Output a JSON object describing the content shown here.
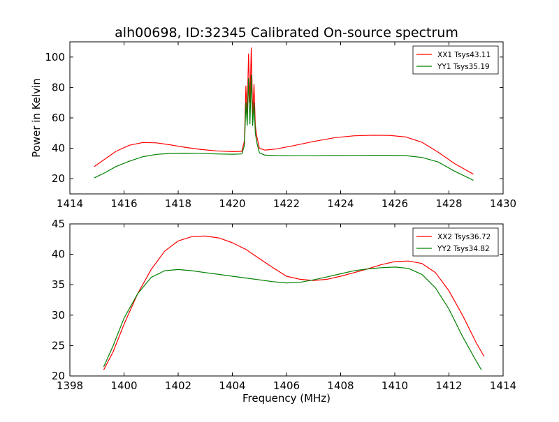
{
  "figure": {
    "title": "alh00698, ID:32345 Calibrated On-source spectrum"
  },
  "colors": {
    "XX": "#ff0000",
    "YY": "#008000"
  },
  "chart_data": [
    {
      "type": "line",
      "title": "alh00698, ID:32345 Calibrated On-source spectrum",
      "xlabel": "",
      "ylabel": "Power in Kelvin",
      "xlim": [
        1414,
        1430
      ],
      "ylim": [
        10,
        110
      ],
      "xticks": [
        1414,
        1416,
        1418,
        1420,
        1422,
        1424,
        1426,
        1428,
        1430
      ],
      "yticks": [
        20,
        40,
        60,
        80,
        100
      ],
      "legend": "top-right",
      "grid": false,
      "series": [
        {
          "name": "XX1 Tsys43.11",
          "color": "#ff0000",
          "x": [
            1414.9,
            1415.3,
            1415.7,
            1416.2,
            1416.7,
            1417.2,
            1417.7,
            1418.2,
            1418.8,
            1419.4,
            1420.0,
            1420.35,
            1420.45,
            1420.5,
            1420.55,
            1420.6,
            1420.65,
            1420.7,
            1420.75,
            1420.8,
            1420.85,
            1420.9,
            1421.0,
            1421.2,
            1421.6,
            1422.2,
            1423.0,
            1423.8,
            1424.5,
            1425.2,
            1425.8,
            1426.4,
            1427.0,
            1427.6,
            1428.2,
            1428.9
          ],
          "y": [
            28,
            33,
            38,
            42,
            43.8,
            43.6,
            42.3,
            40.8,
            39.3,
            38.3,
            37.8,
            38,
            45,
            81,
            62,
            102,
            70,
            106,
            62,
            82,
            55,
            48,
            40,
            38.8,
            39.5,
            41.5,
            44.5,
            47,
            48.2,
            48.6,
            48.5,
            47.5,
            44,
            37.5,
            30,
            23
          ]
        },
        {
          "name": "YY1 Tsys35.19",
          "color": "#008000",
          "x": [
            1414.9,
            1415.3,
            1415.7,
            1416.2,
            1416.7,
            1417.2,
            1417.7,
            1418.2,
            1418.8,
            1419.4,
            1420.0,
            1420.35,
            1420.45,
            1420.5,
            1420.55,
            1420.6,
            1420.65,
            1420.7,
            1420.75,
            1420.8,
            1420.85,
            1420.9,
            1421.0,
            1421.2,
            1421.6,
            1422.2,
            1423.0,
            1423.8,
            1424.5,
            1425.2,
            1425.8,
            1426.4,
            1427.0,
            1427.6,
            1428.2,
            1428.9
          ],
          "y": [
            20.5,
            24,
            28,
            31.5,
            34.5,
            36,
            36.6,
            36.8,
            36.7,
            36.3,
            36.1,
            36.3,
            42,
            70,
            55,
            86,
            56,
            88,
            55,
            70,
            50,
            44,
            37,
            35.5,
            35.2,
            35.1,
            35.1,
            35.2,
            35.3,
            35.4,
            35.4,
            35.2,
            34,
            31,
            25,
            19
          ]
        }
      ]
    },
    {
      "type": "line",
      "title": "",
      "xlabel": "Frequency (MHz)",
      "ylabel": "",
      "xlim": [
        1398,
        1414
      ],
      "ylim": [
        20,
        45
      ],
      "xticks": [
        1398,
        1400,
        1402,
        1404,
        1406,
        1408,
        1410,
        1412,
        1414
      ],
      "yticks": [
        20,
        25,
        30,
        35,
        40,
        45
      ],
      "legend": "top-right",
      "grid": false,
      "series": [
        {
          "name": "XX2 Tsys36.72",
          "color": "#ff0000",
          "x": [
            1399.25,
            1399.6,
            1400.0,
            1400.5,
            1401.0,
            1401.5,
            1402.0,
            1402.5,
            1403.0,
            1403.5,
            1404.0,
            1404.5,
            1405.0,
            1405.5,
            1406.0,
            1406.5,
            1407.0,
            1407.5,
            1408.0,
            1408.5,
            1409.0,
            1409.5,
            1410.0,
            1410.5,
            1411.0,
            1411.5,
            1412.0,
            1412.5,
            1413.0,
            1413.3
          ],
          "y": [
            21,
            24,
            28.5,
            33.5,
            37.5,
            40.5,
            42.2,
            42.9,
            43,
            42.7,
            41.9,
            40.8,
            39.3,
            37.8,
            36.4,
            35.9,
            35.7,
            35.9,
            36.4,
            37,
            37.6,
            38.3,
            38.8,
            38.9,
            38.5,
            37,
            34,
            30,
            25.5,
            23.2
          ]
        },
        {
          "name": "YY2 Tsys34.82",
          "color": "#008000",
          "x": [
            1399.25,
            1399.6,
            1400.0,
            1400.5,
            1401.0,
            1401.5,
            1402.0,
            1402.5,
            1403.0,
            1403.5,
            1404.0,
            1404.5,
            1405.0,
            1405.5,
            1406.0,
            1406.5,
            1407.0,
            1407.5,
            1408.0,
            1408.5,
            1409.0,
            1409.5,
            1410.0,
            1410.5,
            1411.0,
            1411.5,
            1412.0,
            1412.5,
            1413.0,
            1413.2
          ],
          "y": [
            21.5,
            25,
            29.5,
            33.5,
            36.2,
            37.3,
            37.5,
            37.3,
            37,
            36.7,
            36.4,
            36.1,
            35.8,
            35.5,
            35.3,
            35.4,
            35.8,
            36.3,
            36.8,
            37.3,
            37.6,
            37.8,
            37.9,
            37.7,
            36.7,
            34.5,
            31,
            26.5,
            22.5,
            21
          ]
        }
      ]
    }
  ]
}
